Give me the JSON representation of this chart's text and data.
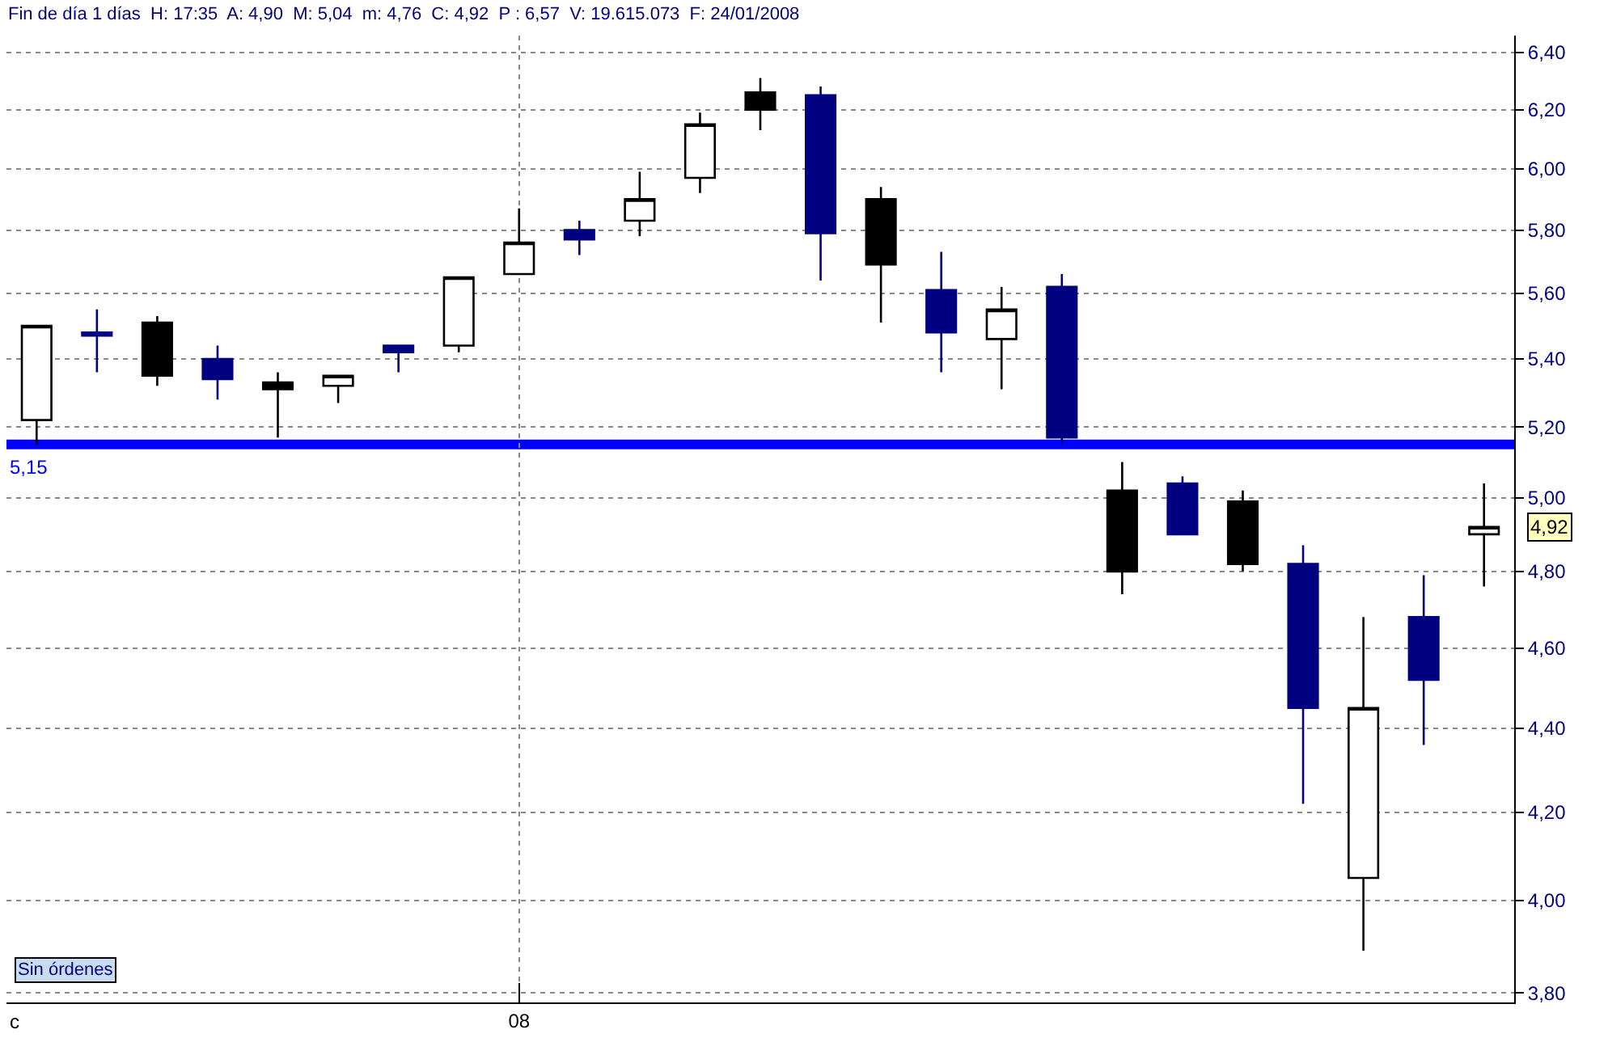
{
  "chart_data": {
    "type": "candlestick",
    "title": "Fin de día 1 días  H: 17:35  A: 4,90  M: 5,04  m: 4,76  C: 4,92  P : 6,57  V: 19.615.073  F: 24/01/2008",
    "categories": [
      null,
      null,
      null,
      null,
      null,
      null,
      null,
      null,
      "08",
      null,
      null,
      null,
      null,
      null,
      null,
      null,
      null,
      null,
      null,
      null,
      null,
      null,
      null,
      null,
      null
    ],
    "ohlc": [
      [
        5.22,
        5.5,
        5.15,
        5.5
      ],
      [
        5.48,
        5.55,
        5.36,
        5.47
      ],
      [
        5.51,
        5.53,
        5.32,
        5.35
      ],
      [
        5.4,
        5.44,
        5.28,
        5.34
      ],
      [
        5.33,
        5.36,
        5.17,
        5.31
      ],
      [
        5.32,
        5.35,
        5.27,
        5.35
      ],
      [
        5.44,
        5.44,
        5.36,
        5.42
      ],
      [
        5.44,
        5.65,
        5.42,
        5.65
      ],
      [
        5.66,
        5.87,
        5.66,
        5.76
      ],
      [
        5.8,
        5.83,
        5.72,
        5.77
      ],
      [
        5.83,
        5.99,
        5.78,
        5.9
      ],
      [
        5.97,
        6.19,
        5.92,
        6.15
      ],
      [
        6.26,
        6.31,
        6.13,
        6.2
      ],
      [
        6.25,
        6.28,
        5.64,
        5.79
      ],
      [
        5.9,
        5.94,
        5.51,
        5.69
      ],
      [
        5.61,
        5.73,
        5.36,
        5.48
      ],
      [
        5.46,
        5.62,
        5.31,
        5.55
      ],
      [
        5.62,
        5.66,
        5.15,
        5.17
      ],
      [
        5.02,
        5.1,
        4.74,
        4.8
      ],
      [
        5.04,
        5.06,
        4.9,
        4.9
      ],
      [
        4.99,
        5.02,
        4.8,
        4.82
      ],
      [
        4.82,
        4.87,
        4.22,
        4.45
      ],
      [
        4.05,
        4.68,
        3.89,
        4.45
      ],
      [
        4.68,
        4.79,
        4.36,
        4.52
      ],
      [
        4.9,
        5.04,
        4.76,
        4.92
      ]
    ],
    "colors": [
      "#ffffff",
      "#000080",
      "#000000",
      "#000080",
      "#000000",
      "#ffffff",
      "#000080",
      "#ffffff",
      "#ffffff",
      "#000080",
      "#ffffff",
      "#ffffff",
      "#000000",
      "#000080",
      "#000000",
      "#000080",
      "#ffffff",
      "#000080",
      "#000000",
      "#000080",
      "#000000",
      "#000080",
      "#ffffff",
      "#000080",
      "#ffffff"
    ],
    "log": true,
    "ylim": [
      3.78,
      6.46
    ],
    "yticks": [
      {
        "value": 3.8,
        "label": "3,80"
      },
      {
        "value": 4.0,
        "label": "4,00"
      },
      {
        "value": 4.2,
        "label": "4,20"
      },
      {
        "value": 4.4,
        "label": "4,40"
      },
      {
        "value": 4.6,
        "label": "4,60"
      },
      {
        "value": 4.8,
        "label": "4,80"
      },
      {
        "value": 5.0,
        "label": "5,00"
      },
      {
        "value": 5.2,
        "label": "5,20"
      },
      {
        "value": 5.4,
        "label": "5,40"
      },
      {
        "value": 5.6,
        "label": "5,60"
      },
      {
        "value": 5.8,
        "label": "5,80"
      },
      {
        "value": 6.0,
        "label": "6,00"
      },
      {
        "value": 6.2,
        "label": "6,20"
      },
      {
        "value": 6.4,
        "label": "6,40"
      }
    ],
    "grid": true,
    "ref_lines": [
      {
        "axis": "y",
        "value": 5.15,
        "label": "5,15",
        "color": "#0000ff"
      }
    ],
    "annotations": [
      "4,92",
      "Sin órdenes",
      "c"
    ]
  }
}
